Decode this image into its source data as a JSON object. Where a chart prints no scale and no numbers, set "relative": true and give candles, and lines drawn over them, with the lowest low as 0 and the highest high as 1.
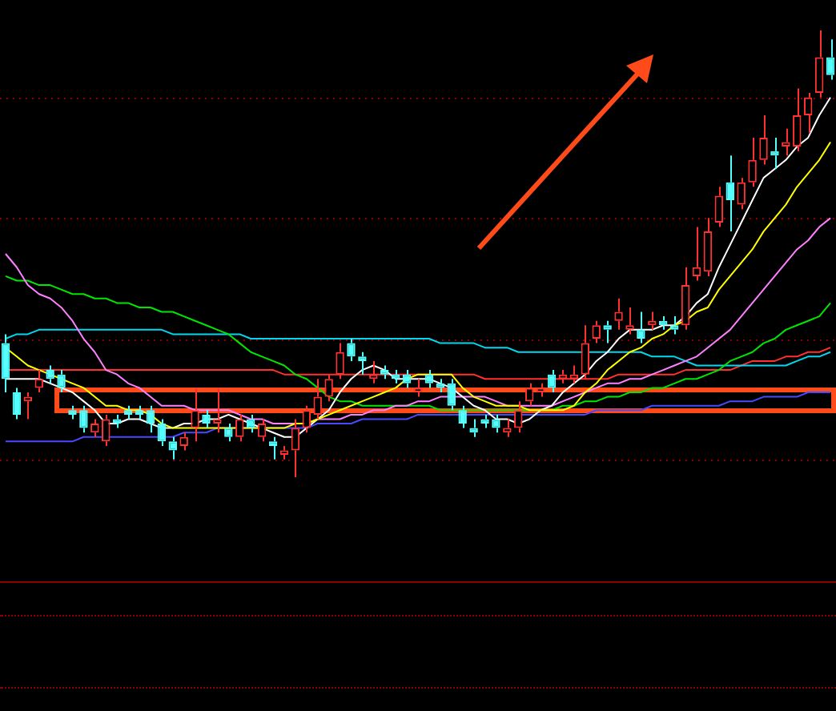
{
  "chart_data": {
    "type": "candlestick",
    "relative": true,
    "legend": false,
    "ref_lines": [
      {
        "axis": "y",
        "value": 0.85,
        "color": "#8c0000",
        "line_style": "dotted"
      },
      {
        "axis": "y",
        "value": 0.58,
        "color": "#8c0000",
        "line_style": "dotted"
      },
      {
        "axis": "y",
        "value": 0.31,
        "color": "#8c0000",
        "line_style": "dotted"
      },
      {
        "axis": "y",
        "value": 0.04,
        "color": "#8c0000",
        "line_style": "dotted"
      }
    ],
    "categories": [
      null,
      null,
      null,
      null,
      null,
      null,
      null,
      null,
      null,
      null,
      null,
      null,
      null,
      null,
      null,
      null,
      null,
      null,
      null,
      null,
      null,
      null,
      null,
      null,
      null,
      null,
      null,
      null,
      null,
      null,
      null,
      null,
      null,
      null,
      null,
      null,
      null,
      null,
      null,
      null,
      null,
      null,
      null,
      null,
      null,
      null,
      null,
      null,
      null,
      null,
      null,
      null,
      null,
      null,
      null,
      null,
      null,
      null,
      null,
      null,
      null,
      null,
      null,
      null,
      null,
      null,
      null,
      null,
      null,
      null,
      null,
      null,
      null,
      null,
      null
    ],
    "ohlc": [
      [
        0.3,
        0.32,
        0.19,
        0.22
      ],
      [
        0.19,
        0.2,
        0.13,
        0.14
      ],
      [
        0.17,
        0.19,
        0.13,
        0.18
      ],
      [
        0.2,
        0.24,
        0.19,
        0.22
      ],
      [
        0.24,
        0.25,
        0.21,
        0.22
      ],
      [
        0.23,
        0.24,
        0.19,
        0.2
      ],
      [
        0.15,
        0.16,
        0.13,
        0.14
      ],
      [
        0.15,
        0.16,
        0.1,
        0.11
      ],
      [
        0.1,
        0.13,
        0.09,
        0.12
      ],
      [
        0.08,
        0.14,
        0.07,
        0.13
      ],
      [
        0.13,
        0.14,
        0.11,
        0.12
      ],
      [
        0.15,
        0.16,
        0.13,
        0.14
      ],
      [
        0.15,
        0.16,
        0.13,
        0.14
      ],
      [
        0.15,
        0.16,
        0.1,
        0.12
      ],
      [
        0.12,
        0.13,
        0.07,
        0.08
      ],
      [
        0.08,
        0.09,
        0.04,
        0.06
      ],
      [
        0.07,
        0.1,
        0.06,
        0.09
      ],
      [
        0.11,
        0.2,
        0.08,
        0.15
      ],
      [
        0.14,
        0.15,
        0.11,
        0.12
      ],
      [
        0.12,
        0.2,
        0.1,
        0.13
      ],
      [
        0.11,
        0.12,
        0.08,
        0.09
      ],
      [
        0.09,
        0.14,
        0.08,
        0.13
      ],
      [
        0.13,
        0.14,
        0.1,
        0.11
      ],
      [
        0.09,
        0.13,
        0.08,
        0.12
      ],
      [
        0.08,
        0.09,
        0.04,
        0.07
      ],
      [
        0.05,
        0.07,
        0.04,
        0.06
      ],
      [
        0.06,
        0.13,
        0,
        0.11
      ],
      [
        0.11,
        0.16,
        0.1,
        0.15
      ],
      [
        0.14,
        0.22,
        0.13,
        0.18
      ],
      [
        0.18,
        0.23,
        0.17,
        0.22
      ],
      [
        0.23,
        0.3,
        0.22,
        0.28
      ],
      [
        0.3,
        0.31,
        0.26,
        0.27
      ],
      [
        0.27,
        0.28,
        0.23,
        0.26
      ],
      [
        0.22,
        0.26,
        0.21,
        0.23
      ],
      [
        0.24,
        0.25,
        0.22,
        0.23
      ],
      [
        0.23,
        0.24,
        0.21,
        0.22
      ],
      [
        0.23,
        0.24,
        0.2,
        0.21
      ],
      [
        0.19,
        0.22,
        0.18,
        0.2
      ],
      [
        0.23,
        0.24,
        0.2,
        0.21
      ],
      [
        0.21,
        0.22,
        0.19,
        0.2
      ],
      [
        0.21,
        0.22,
        0.15,
        0.16
      ],
      [
        0.15,
        0.16,
        0.11,
        0.12
      ],
      [
        0.11,
        0.13,
        0.09,
        0.1
      ],
      [
        0.13,
        0.14,
        0.11,
        0.12
      ],
      [
        0.13,
        0.14,
        0.1,
        0.11
      ],
      [
        0.1,
        0.13,
        0.09,
        0.11
      ],
      [
        0.11,
        0.17,
        0.1,
        0.15
      ],
      [
        0.17,
        0.21,
        0.16,
        0.2
      ],
      [
        0.19,
        0.21,
        0.18,
        0.2
      ],
      [
        0.23,
        0.24,
        0.19,
        0.2
      ],
      [
        0.22,
        0.24,
        0.21,
        0.23
      ],
      [
        0.22,
        0.25,
        0.21,
        0.23
      ],
      [
        0.23,
        0.34,
        0.22,
        0.3
      ],
      [
        0.31,
        0.35,
        0.3,
        0.34
      ],
      [
        0.34,
        0.35,
        0.3,
        0.33
      ],
      [
        0.35,
        0.4,
        0.33,
        0.37
      ],
      [
        0.33,
        0.38,
        0.32,
        0.34
      ],
      [
        0.33,
        0.37,
        0.3,
        0.31
      ],
      [
        0.34,
        0.37,
        0.33,
        0.35
      ],
      [
        0.35,
        0.36,
        0.33,
        0.34
      ],
      [
        0.34,
        0.36,
        0.32,
        0.33
      ],
      [
        0.34,
        0.47,
        0.33,
        0.43
      ],
      [
        0.45,
        0.56,
        0.44,
        0.47
      ],
      [
        0.46,
        0.58,
        0.45,
        0.55
      ],
      [
        0.57,
        0.65,
        0.56,
        0.63
      ],
      [
        0.66,
        0.72,
        0.55,
        0.62
      ],
      [
        0.61,
        0.67,
        0.6,
        0.66
      ],
      [
        0.66,
        0.76,
        0.65,
        0.71
      ],
      [
        0.71,
        0.81,
        0.7,
        0.76
      ],
      [
        0.73,
        0.76,
        0.69,
        0.72
      ],
      [
        0.74,
        0.78,
        0.72,
        0.75
      ],
      [
        0.74,
        0.87,
        0.73,
        0.81
      ],
      [
        0.81,
        0.86,
        0.77,
        0.85
      ],
      [
        0.86,
        1,
        0.85,
        0.94
      ],
      [
        0.94,
        0.98,
        0.89,
        0.9
      ]
    ],
    "colors": [
      "#54ffff",
      "#54ffff",
      "#ff3232",
      "#ff3232",
      "#54ffff",
      "#54ffff",
      "#54ffff",
      "#54ffff",
      "#ff3232",
      "#ff3232",
      "#54ffff",
      "#54ffff",
      "#54ffff",
      "#54ffff",
      "#54ffff",
      "#54ffff",
      "#ff3232",
      "#ff3232",
      "#54ffff",
      "#ff3232",
      "#54ffff",
      "#ff3232",
      "#54ffff",
      "#ff3232",
      "#54ffff",
      "#ff3232",
      "#ff3232",
      "#ff3232",
      "#ff3232",
      "#ff3232",
      "#ff3232",
      "#54ffff",
      "#54ffff",
      "#ff3232",
      "#54ffff",
      "#54ffff",
      "#54ffff",
      "#ff3232",
      "#54ffff",
      "#54ffff",
      "#54ffff",
      "#54ffff",
      "#54ffff",
      "#54ffff",
      "#54ffff",
      "#ff3232",
      "#ff3232",
      "#ff3232",
      "#ff3232",
      "#54ffff",
      "#ff3232",
      "#ff3232",
      "#ff3232",
      "#ff3232",
      "#54ffff",
      "#ff3232",
      "#ff3232",
      "#54ffff",
      "#ff3232",
      "#54ffff",
      "#54ffff",
      "#ff3232",
      "#ff3232",
      "#ff3232",
      "#ff3232",
      "#54ffff",
      "#ff3232",
      "#ff3232",
      "#ff3232",
      "#54ffff",
      "#ff3232",
      "#ff3232",
      "#ff3232",
      "#ff3232",
      "#54ffff"
    ],
    "series": [
      {
        "type": "line",
        "color": "#ffff00",
        "values": [
          0.29,
          0.27,
          0.25,
          0.24,
          0.23,
          0.22,
          0.21,
          0.2,
          0.18,
          0.16,
          0.16,
          0.15,
          0.15,
          0.14,
          0.12,
          0.11,
          0.11,
          0.11,
          0.11,
          0.11,
          0.11,
          0.11,
          0.11,
          0.11,
          0.11,
          0.11,
          0.12,
          0.12,
          0.13,
          0.14,
          0.15,
          0.16,
          0.17,
          0.18,
          0.19,
          0.2,
          0.22,
          0.23,
          0.23,
          0.23,
          0.23,
          0.2,
          0.18,
          0.17,
          0.16,
          0.16,
          0.16,
          0.15,
          0.15,
          0.15,
          0.15,
          0.16,
          0.19,
          0.21,
          0.24,
          0.26,
          0.28,
          0.29,
          0.31,
          0.32,
          0.34,
          0.35,
          0.37,
          0.38,
          0.42,
          0.45,
          0.48,
          0.51,
          0.55,
          0.58,
          0.61,
          0.65,
          0.68,
          0.71,
          0.75
        ]
      },
      {
        "type": "line",
        "color": "#ffffff",
        "values": [
          0.22,
          0.22,
          0.22,
          0.22,
          0.21,
          0.2,
          0.19,
          0.17,
          0.15,
          0.12,
          0.12,
          0.13,
          0.13,
          0.12,
          0.11,
          0.11,
          0.12,
          0.12,
          0.13,
          0.13,
          0.14,
          0.13,
          0.12,
          0.11,
          0.1,
          0.09,
          0.09,
          0.11,
          0.13,
          0.15,
          0.19,
          0.22,
          0.24,
          0.25,
          0.24,
          0.22,
          0.22,
          0.22,
          0.22,
          0.21,
          0.2,
          0.18,
          0.16,
          0.15,
          0.13,
          0.13,
          0.12,
          0.13,
          0.15,
          0.16,
          0.19,
          0.21,
          0.23,
          0.26,
          0.28,
          0.31,
          0.33,
          0.33,
          0.33,
          0.34,
          0.34,
          0.36,
          0.39,
          0.41,
          0.47,
          0.52,
          0.57,
          0.62,
          0.67,
          0.69,
          0.71,
          0.74,
          0.76,
          0.81,
          0.85
        ]
      },
      {
        "type": "line",
        "color": "#ff80ff",
        "values": [
          0.5,
          0.47,
          0.43,
          0.41,
          0.4,
          0.38,
          0.35,
          0.31,
          0.28,
          0.24,
          0.23,
          0.21,
          0.2,
          0.18,
          0.16,
          0.16,
          0.16,
          0.15,
          0.15,
          0.15,
          0.15,
          0.14,
          0.13,
          0.13,
          0.12,
          0.12,
          0.12,
          0.12,
          0.13,
          0.13,
          0.13,
          0.14,
          0.14,
          0.15,
          0.15,
          0.16,
          0.16,
          0.17,
          0.17,
          0.18,
          0.18,
          0.18,
          0.18,
          0.18,
          0.17,
          0.16,
          0.16,
          0.16,
          0.16,
          0.16,
          0.17,
          0.18,
          0.19,
          0.2,
          0.21,
          0.21,
          0.22,
          0.22,
          0.23,
          0.24,
          0.25,
          0.26,
          0.27,
          0.29,
          0.31,
          0.33,
          0.36,
          0.39,
          0.42,
          0.45,
          0.48,
          0.51,
          0.53,
          0.56,
          0.58
        ]
      },
      {
        "type": "line",
        "color": "#00e600",
        "values": [
          0.45,
          0.44,
          0.44,
          0.43,
          0.43,
          0.42,
          0.41,
          0.41,
          0.4,
          0.4,
          0.39,
          0.39,
          0.38,
          0.38,
          0.37,
          0.37,
          0.36,
          0.35,
          0.34,
          0.33,
          0.32,
          0.3,
          0.28,
          0.27,
          0.26,
          0.25,
          0.23,
          0.22,
          0.2,
          0.18,
          0.17,
          0.17,
          0.16,
          0.16,
          0.16,
          0.16,
          0.16,
          0.16,
          0.16,
          0.15,
          0.15,
          0.15,
          0.15,
          0.15,
          0.15,
          0.15,
          0.15,
          0.15,
          0.15,
          0.15,
          0.16,
          0.16,
          0.17,
          0.17,
          0.18,
          0.18,
          0.19,
          0.19,
          0.2,
          0.2,
          0.21,
          0.22,
          0.22,
          0.23,
          0.24,
          0.26,
          0.27,
          0.28,
          0.3,
          0.31,
          0.33,
          0.34,
          0.35,
          0.36,
          0.39
        ]
      },
      {
        "type": "line",
        "color": "#00d8f0",
        "values": [
          0.31,
          0.32,
          0.32,
          0.33,
          0.33,
          0.33,
          0.33,
          0.33,
          0.33,
          0.33,
          0.33,
          0.33,
          0.33,
          0.33,
          0.33,
          0.32,
          0.32,
          0.32,
          0.32,
          0.32,
          0.32,
          0.32,
          0.31,
          0.31,
          0.31,
          0.31,
          0.31,
          0.31,
          0.31,
          0.31,
          0.31,
          0.31,
          0.31,
          0.31,
          0.31,
          0.31,
          0.31,
          0.31,
          0.31,
          0.3,
          0.3,
          0.3,
          0.3,
          0.29,
          0.29,
          0.29,
          0.28,
          0.28,
          0.28,
          0.28,
          0.28,
          0.28,
          0.28,
          0.28,
          0.28,
          0.28,
          0.28,
          0.28,
          0.27,
          0.27,
          0.27,
          0.26,
          0.25,
          0.25,
          0.25,
          0.25,
          0.25,
          0.25,
          0.25,
          0.25,
          0.25,
          0.26,
          0.27,
          0.27,
          0.28
        ]
      },
      {
        "type": "line",
        "color": "#ff3030",
        "values": [
          0.24,
          0.24,
          0.24,
          0.24,
          0.24,
          0.24,
          0.24,
          0.24,
          0.24,
          0.24,
          0.24,
          0.24,
          0.24,
          0.24,
          0.24,
          0.24,
          0.24,
          0.24,
          0.24,
          0.24,
          0.24,
          0.24,
          0.24,
          0.24,
          0.24,
          0.23,
          0.23,
          0.23,
          0.23,
          0.23,
          0.23,
          0.23,
          0.23,
          0.23,
          0.23,
          0.23,
          0.23,
          0.23,
          0.23,
          0.23,
          0.23,
          0.23,
          0.23,
          0.22,
          0.22,
          0.22,
          0.22,
          0.22,
          0.22,
          0.22,
          0.22,
          0.22,
          0.22,
          0.22,
          0.22,
          0.23,
          0.23,
          0.23,
          0.23,
          0.23,
          0.23,
          0.24,
          0.24,
          0.24,
          0.24,
          0.24,
          0.25,
          0.26,
          0.26,
          0.26,
          0.27,
          0.27,
          0.28,
          0.28,
          0.29
        ]
      },
      {
        "type": "line",
        "color": "#4848ff",
        "values": [
          0.08,
          0.08,
          0.08,
          0.08,
          0.08,
          0.08,
          0.08,
          0.09,
          0.09,
          0.09,
          0.09,
          0.09,
          0.09,
          0.09,
          0.09,
          0.09,
          0.1,
          0.1,
          0.1,
          0.11,
          0.11,
          0.11,
          0.11,
          0.11,
          0.11,
          0.11,
          0.11,
          0.11,
          0.12,
          0.12,
          0.12,
          0.12,
          0.13,
          0.13,
          0.13,
          0.13,
          0.13,
          0.14,
          0.14,
          0.14,
          0.14,
          0.14,
          0.14,
          0.14,
          0.14,
          0.14,
          0.14,
          0.14,
          0.14,
          0.14,
          0.14,
          0.14,
          0.14,
          0.15,
          0.15,
          0.15,
          0.15,
          0.15,
          0.16,
          0.16,
          0.16,
          0.16,
          0.16,
          0.16,
          0.16,
          0.17,
          0.17,
          0.17,
          0.18,
          0.18,
          0.18,
          0.18,
          0.19,
          0.19,
          0.19
        ]
      }
    ]
  }
}
